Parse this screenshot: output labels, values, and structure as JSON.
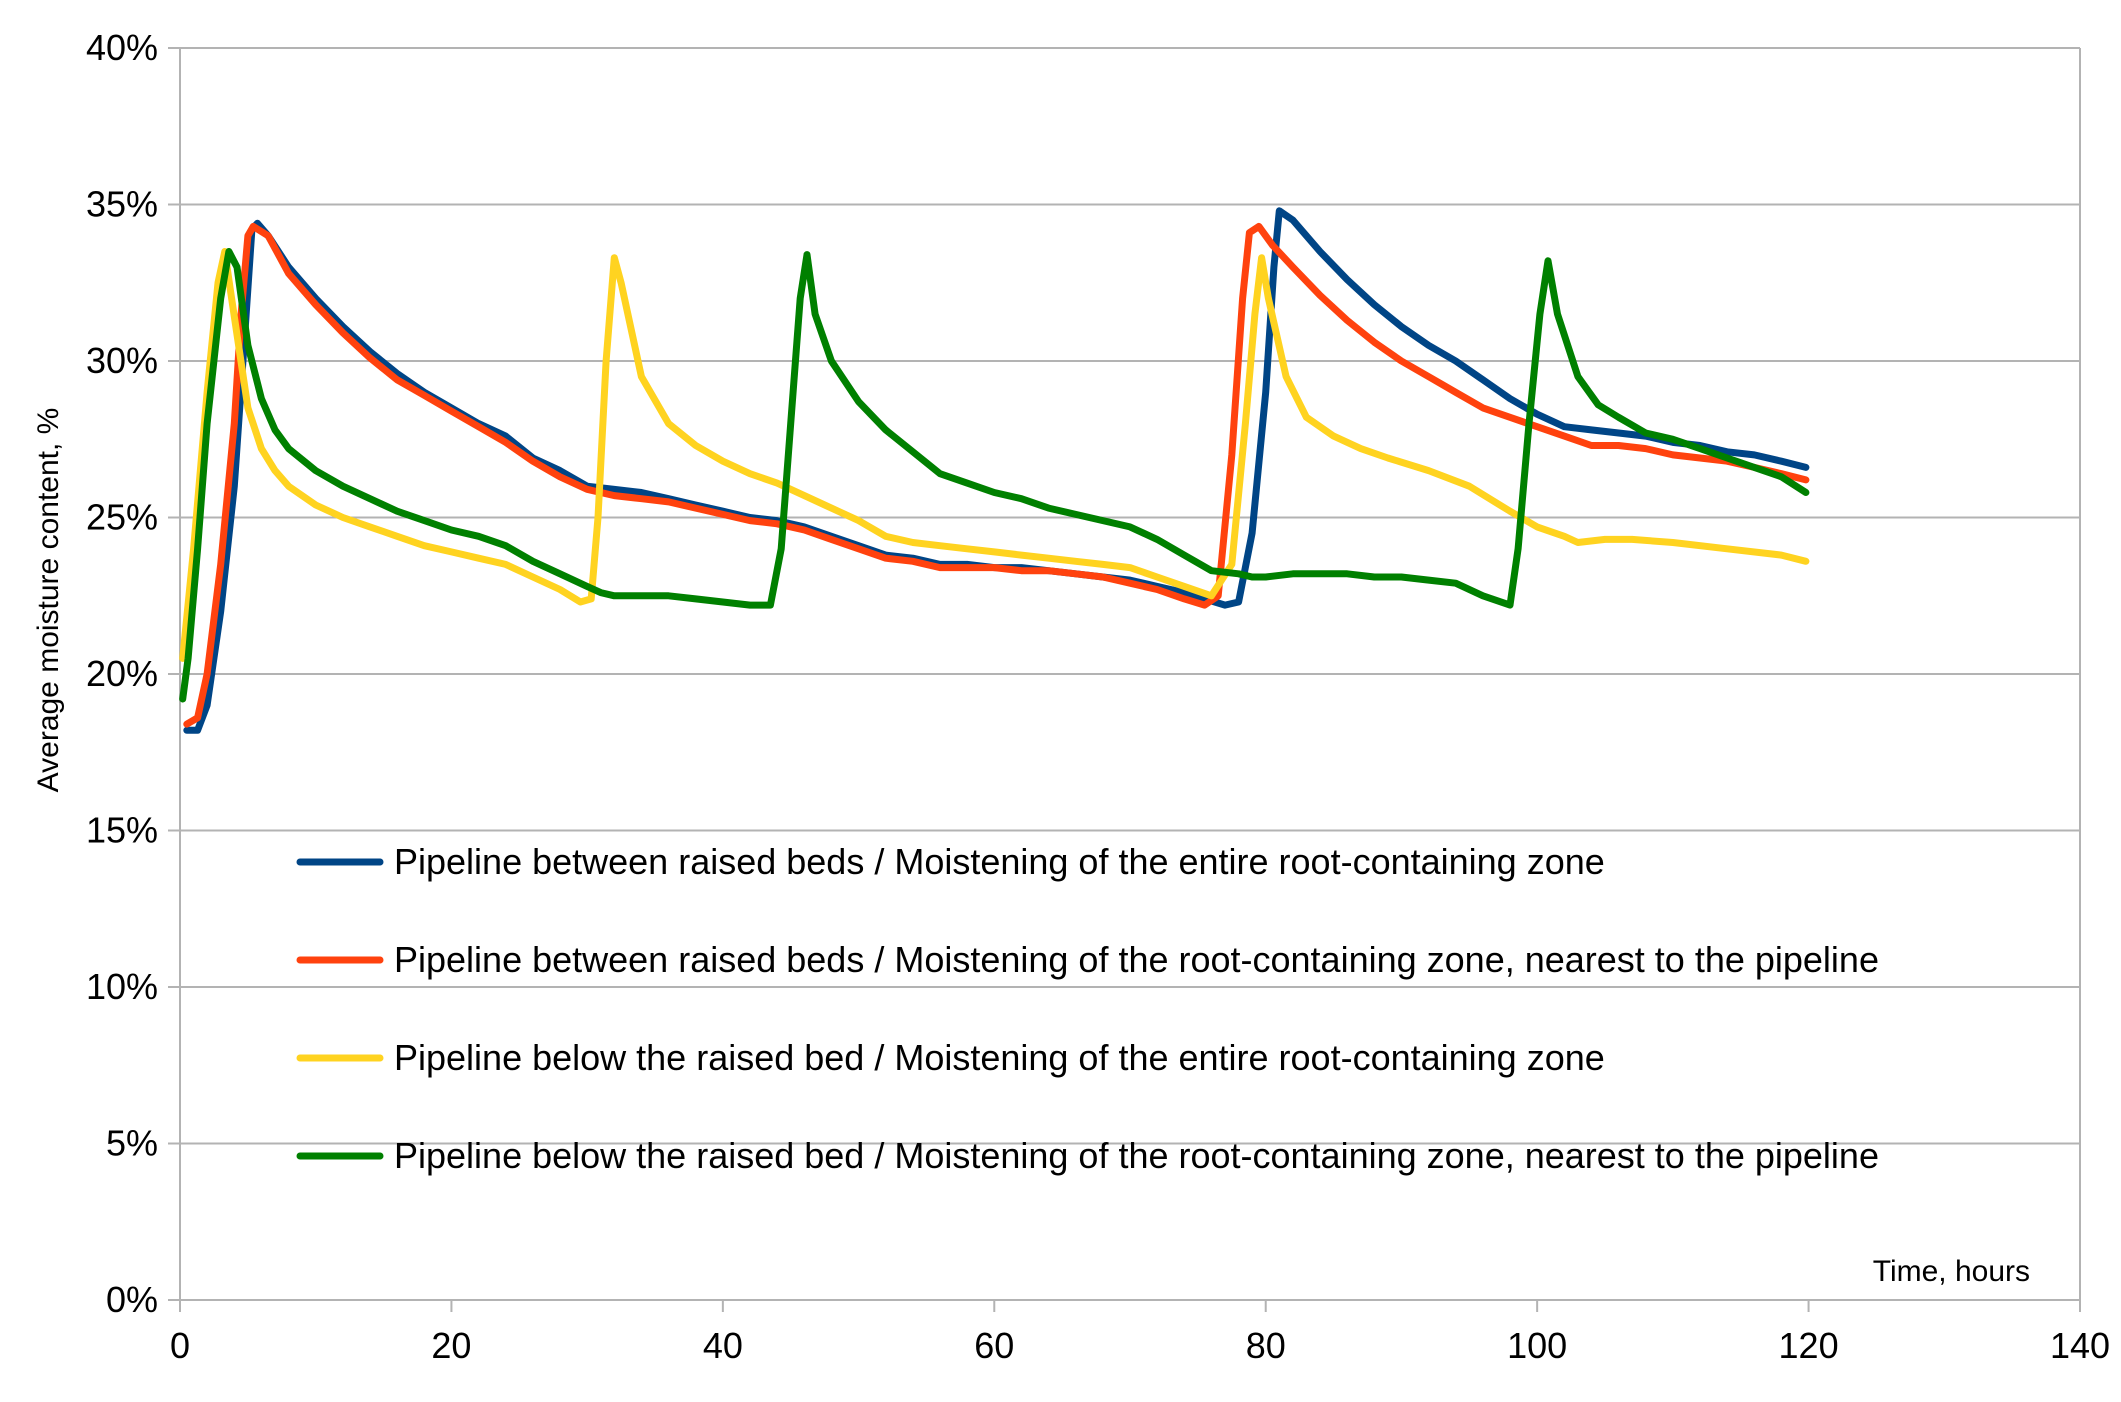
{
  "chart_data": {
    "type": "line",
    "title": "",
    "xlabel": "Time, hours",
    "ylabel": "Average moisture content, %",
    "xlim": [
      0,
      140
    ],
    "ylim": [
      0,
      40
    ],
    "x_ticks": [
      0,
      20,
      40,
      60,
      80,
      100,
      120,
      140
    ],
    "x_tick_labels": [
      "0",
      "20",
      "40",
      "60",
      "80",
      "100",
      "120",
      "140"
    ],
    "y_ticks": [
      0,
      5,
      10,
      15,
      20,
      25,
      30,
      35,
      40
    ],
    "y_tick_labels": [
      "0%",
      "5%",
      "10%",
      "15%",
      "20%",
      "25%",
      "30%",
      "35%",
      "40%"
    ],
    "grid": true,
    "legend_position": "center-left",
    "series": [
      {
        "name": "Pipeline between raised beds / Moistening of the entire root-containing zone",
        "color": "#004586",
        "points": [
          [
            0.5,
            18.2
          ],
          [
            1.3,
            18.2
          ],
          [
            2,
            19
          ],
          [
            3,
            22
          ],
          [
            4,
            26
          ],
          [
            4.8,
            31
          ],
          [
            5.3,
            34.2
          ],
          [
            5.7,
            34.4
          ],
          [
            6.5,
            34
          ],
          [
            8,
            33
          ],
          [
            10,
            32
          ],
          [
            12,
            31.1
          ],
          [
            14,
            30.3
          ],
          [
            16,
            29.6
          ],
          [
            18,
            29
          ],
          [
            20,
            28.5
          ],
          [
            22,
            28
          ],
          [
            24,
            27.6
          ],
          [
            26,
            26.9
          ],
          [
            28,
            26.5
          ],
          [
            30,
            26
          ],
          [
            32,
            25.9
          ],
          [
            34,
            25.8
          ],
          [
            36,
            25.6
          ],
          [
            38,
            25.4
          ],
          [
            40,
            25.2
          ],
          [
            42,
            25
          ],
          [
            44,
            24.9
          ],
          [
            46,
            24.7
          ],
          [
            48,
            24.4
          ],
          [
            50,
            24.1
          ],
          [
            52,
            23.8
          ],
          [
            54,
            23.7
          ],
          [
            56,
            23.5
          ],
          [
            58,
            23.5
          ],
          [
            60,
            23.4
          ],
          [
            62,
            23.4
          ],
          [
            64,
            23.3
          ],
          [
            66,
            23.2
          ],
          [
            68,
            23.1
          ],
          [
            70,
            23
          ],
          [
            72,
            22.8
          ],
          [
            74,
            22.6
          ],
          [
            75.5,
            22.4
          ],
          [
            77,
            22.2
          ],
          [
            78,
            22.3
          ],
          [
            79,
            24.5
          ],
          [
            80,
            29
          ],
          [
            80.6,
            33
          ],
          [
            81,
            34.8
          ],
          [
            82,
            34.5
          ],
          [
            84,
            33.5
          ],
          [
            86,
            32.6
          ],
          [
            88,
            31.8
          ],
          [
            90,
            31.1
          ],
          [
            92,
            30.5
          ],
          [
            94,
            30
          ],
          [
            96,
            29.4
          ],
          [
            98,
            28.8
          ],
          [
            100,
            28.3
          ],
          [
            102,
            27.9
          ],
          [
            104,
            27.8
          ],
          [
            106,
            27.7
          ],
          [
            108,
            27.6
          ],
          [
            110,
            27.4
          ],
          [
            112,
            27.3
          ],
          [
            114,
            27.1
          ],
          [
            116,
            27
          ],
          [
            118,
            26.8
          ],
          [
            119.8,
            26.6
          ]
        ]
      },
      {
        "name": "Pipeline between raised beds / Moistening of the root-containing zone, nearest to the pipeline",
        "color": "#ff420e",
        "points": [
          [
            0.5,
            18.4
          ],
          [
            1.3,
            18.6
          ],
          [
            2,
            20
          ],
          [
            3,
            23.5
          ],
          [
            4,
            28
          ],
          [
            4.5,
            31.5
          ],
          [
            5,
            34
          ],
          [
            5.4,
            34.3
          ],
          [
            6.5,
            34
          ],
          [
            8,
            32.8
          ],
          [
            10,
            31.8
          ],
          [
            12,
            30.9
          ],
          [
            14,
            30.1
          ],
          [
            16,
            29.4
          ],
          [
            18,
            28.9
          ],
          [
            20,
            28.4
          ],
          [
            22,
            27.9
          ],
          [
            24,
            27.4
          ],
          [
            26,
            26.8
          ],
          [
            28,
            26.3
          ],
          [
            30,
            25.9
          ],
          [
            32,
            25.7
          ],
          [
            34,
            25.6
          ],
          [
            36,
            25.5
          ],
          [
            38,
            25.3
          ],
          [
            40,
            25.1
          ],
          [
            42,
            24.9
          ],
          [
            44,
            24.8
          ],
          [
            46,
            24.6
          ],
          [
            48,
            24.3
          ],
          [
            50,
            24
          ],
          [
            52,
            23.7
          ],
          [
            54,
            23.6
          ],
          [
            56,
            23.4
          ],
          [
            58,
            23.4
          ],
          [
            60,
            23.4
          ],
          [
            62,
            23.3
          ],
          [
            64,
            23.3
          ],
          [
            66,
            23.2
          ],
          [
            68,
            23.1
          ],
          [
            70,
            22.9
          ],
          [
            72,
            22.7
          ],
          [
            74,
            22.4
          ],
          [
            75.5,
            22.2
          ],
          [
            76.5,
            22.5
          ],
          [
            77.5,
            27
          ],
          [
            78.3,
            32
          ],
          [
            78.8,
            34.1
          ],
          [
            79.5,
            34.3
          ],
          [
            80.5,
            33.7
          ],
          [
            82,
            33
          ],
          [
            84,
            32.1
          ],
          [
            86,
            31.3
          ],
          [
            88,
            30.6
          ],
          [
            90,
            30
          ],
          [
            92,
            29.5
          ],
          [
            94,
            29
          ],
          [
            96,
            28.5
          ],
          [
            98,
            28.2
          ],
          [
            100,
            27.9
          ],
          [
            102,
            27.6
          ],
          [
            104,
            27.3
          ],
          [
            106,
            27.3
          ],
          [
            108,
            27.2
          ],
          [
            110,
            27
          ],
          [
            112,
            26.9
          ],
          [
            114,
            26.8
          ],
          [
            116,
            26.6
          ],
          [
            118,
            26.4
          ],
          [
            119.8,
            26.2
          ]
        ]
      },
      {
        "name": "Pipeline below the raised bed / Moistening of the entire root-containing zone",
        "color": "#ffd320",
        "points": [
          [
            0.2,
            20.5
          ],
          [
            1,
            24
          ],
          [
            2,
            29
          ],
          [
            2.8,
            32.5
          ],
          [
            3.3,
            33.5
          ],
          [
            3.8,
            32
          ],
          [
            5,
            28.5
          ],
          [
            6,
            27.2
          ],
          [
            7,
            26.5
          ],
          [
            8,
            26
          ],
          [
            10,
            25.4
          ],
          [
            12,
            25
          ],
          [
            14,
            24.7
          ],
          [
            16,
            24.4
          ],
          [
            18,
            24.1
          ],
          [
            20,
            23.9
          ],
          [
            22,
            23.7
          ],
          [
            24,
            23.5
          ],
          [
            26,
            23.1
          ],
          [
            28,
            22.7
          ],
          [
            29.5,
            22.3
          ],
          [
            30.3,
            22.4
          ],
          [
            30.8,
            25
          ],
          [
            31.4,
            30
          ],
          [
            32,
            33.3
          ],
          [
            32.5,
            32.5
          ],
          [
            34,
            29.5
          ],
          [
            36,
            28
          ],
          [
            38,
            27.3
          ],
          [
            40,
            26.8
          ],
          [
            42,
            26.4
          ],
          [
            44,
            26.1
          ],
          [
            46,
            25.7
          ],
          [
            48,
            25.3
          ],
          [
            50,
            24.9
          ],
          [
            52,
            24.4
          ],
          [
            54,
            24.2
          ],
          [
            56,
            24.1
          ],
          [
            58,
            24
          ],
          [
            60,
            23.9
          ],
          [
            62,
            23.8
          ],
          [
            64,
            23.7
          ],
          [
            66,
            23.6
          ],
          [
            68,
            23.5
          ],
          [
            70,
            23.4
          ],
          [
            72,
            23.1
          ],
          [
            74,
            22.8
          ],
          [
            76,
            22.5
          ],
          [
            77.5,
            23.5
          ],
          [
            78.5,
            28
          ],
          [
            79.2,
            31.5
          ],
          [
            79.7,
            33.3
          ],
          [
            80.2,
            32
          ],
          [
            81.5,
            29.5
          ],
          [
            83,
            28.2
          ],
          [
            85,
            27.6
          ],
          [
            87,
            27.2
          ],
          [
            89,
            26.9
          ],
          [
            92,
            26.5
          ],
          [
            95,
            26
          ],
          [
            98,
            25.2
          ],
          [
            100,
            24.7
          ],
          [
            102,
            24.4
          ],
          [
            103,
            24.2
          ],
          [
            105,
            24.3
          ],
          [
            107,
            24.3
          ],
          [
            110,
            24.2
          ],
          [
            114,
            24
          ],
          [
            118,
            23.8
          ],
          [
            119.8,
            23.6
          ]
        ]
      },
      {
        "name": "Pipeline below the raised bed / Moistening of the root-containing zone, nearest to the pipeline",
        "color": "#008000",
        "points": [
          [
            0.2,
            19.2
          ],
          [
            0.6,
            20.5
          ],
          [
            1.3,
            24
          ],
          [
            2,
            28
          ],
          [
            3,
            32
          ],
          [
            3.6,
            33.5
          ],
          [
            4.2,
            33
          ],
          [
            5,
            30.5
          ],
          [
            6,
            28.8
          ],
          [
            7,
            27.8
          ],
          [
            8,
            27.2
          ],
          [
            10,
            26.5
          ],
          [
            12,
            26
          ],
          [
            14,
            25.6
          ],
          [
            16,
            25.2
          ],
          [
            18,
            24.9
          ],
          [
            20,
            24.6
          ],
          [
            22,
            24.4
          ],
          [
            24,
            24.1
          ],
          [
            26,
            23.6
          ],
          [
            28,
            23.2
          ],
          [
            30,
            22.8
          ],
          [
            31,
            22.6
          ],
          [
            32,
            22.5
          ],
          [
            34,
            22.5
          ],
          [
            36,
            22.5
          ],
          [
            38,
            22.4
          ],
          [
            40,
            22.3
          ],
          [
            42,
            22.2
          ],
          [
            43.5,
            22.2
          ],
          [
            44.3,
            24
          ],
          [
            45,
            28
          ],
          [
            45.7,
            32
          ],
          [
            46.2,
            33.4
          ],
          [
            46.8,
            31.5
          ],
          [
            48,
            30
          ],
          [
            50,
            28.7
          ],
          [
            52,
            27.8
          ],
          [
            54,
            27.1
          ],
          [
            56,
            26.4
          ],
          [
            58,
            26.1
          ],
          [
            60,
            25.8
          ],
          [
            62,
            25.6
          ],
          [
            64,
            25.3
          ],
          [
            66,
            25.1
          ],
          [
            68,
            24.9
          ],
          [
            70,
            24.7
          ],
          [
            72,
            24.3
          ],
          [
            74,
            23.8
          ],
          [
            76,
            23.3
          ],
          [
            78,
            23.2
          ],
          [
            79,
            23.1
          ],
          [
            80,
            23.1
          ],
          [
            82,
            23.2
          ],
          [
            84,
            23.2
          ],
          [
            86,
            23.2
          ],
          [
            88,
            23.1
          ],
          [
            90,
            23.1
          ],
          [
            92,
            23
          ],
          [
            94,
            22.9
          ],
          [
            96,
            22.5
          ],
          [
            98,
            22.2
          ],
          [
            98.6,
            24
          ],
          [
            99.4,
            28
          ],
          [
            100.2,
            31.5
          ],
          [
            100.8,
            33.2
          ],
          [
            101.5,
            31.5
          ],
          [
            103,
            29.5
          ],
          [
            104.5,
            28.6
          ],
          [
            106,
            28.2
          ],
          [
            108,
            27.7
          ],
          [
            110,
            27.5
          ],
          [
            112,
            27.2
          ],
          [
            114,
            26.9
          ],
          [
            116,
            26.6
          ],
          [
            118,
            26.3
          ],
          [
            119.8,
            25.8
          ]
        ]
      }
    ]
  }
}
